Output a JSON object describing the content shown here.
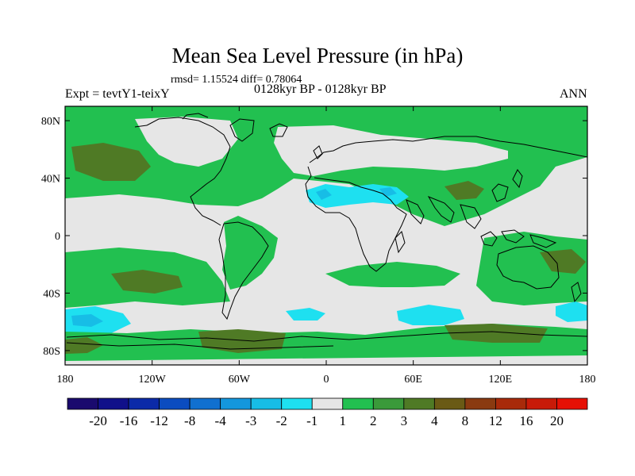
{
  "chart_data": {
    "type": "heatmap",
    "title": "Mean Sea Level Pressure (in hPa)",
    "stats": "rmsd= 1.15524 diff= 0.78064",
    "period": "0128kyr BP - 0128kyr BP",
    "experiment": "Expt = tevtY1-teixY",
    "season": "ANN",
    "x_ticks": [
      "180",
      "120W",
      "60W",
      "0",
      "60E",
      "120E",
      "180"
    ],
    "y_ticks": [
      "80N",
      "40N",
      "0",
      "40S",
      "80S"
    ],
    "xlim": [
      -180,
      180
    ],
    "ylim": [
      -90,
      90
    ],
    "colorbar": {
      "labels": [
        "-20",
        "-16",
        "-12",
        "-8",
        "-4",
        "-3",
        "-2",
        "-1",
        "1",
        "2",
        "3",
        "4",
        "8",
        "12",
        "16",
        "20"
      ],
      "colors": [
        "#1a0a6e",
        "#10108a",
        "#0b2aa8",
        "#0b4cc0",
        "#1070d0",
        "#1497dd",
        "#17bde6",
        "#1ee0f0",
        "#e6e6e6",
        "#22c050",
        "#3a9a3a",
        "#4f7a25",
        "#6a5a15",
        "#8a3a10",
        "#a82a0a",
        "#c81a08",
        "#e61005"
      ]
    }
  }
}
